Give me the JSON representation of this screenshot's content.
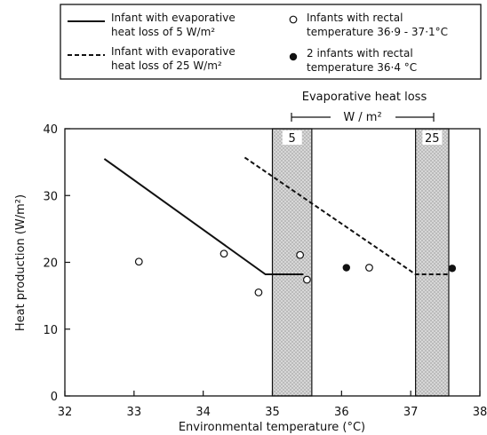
{
  "chart_data": {
    "type": "scatter",
    "xlabel": "Environmental temperature (°C)",
    "ylabel": "Heat production (W/m²)",
    "xlim": [
      32,
      38
    ],
    "ylim": [
      0,
      40
    ],
    "x_ticks": [
      "32",
      "33",
      "34",
      "35",
      "36",
      "37",
      "38"
    ],
    "y_ticks": [
      "0",
      "10",
      "20",
      "30",
      "40"
    ],
    "legend": {
      "placement": "top",
      "entries": [
        {
          "key": "solid",
          "line1": "Infant with evaporative",
          "line2": "heat loss of  5 W/m²"
        },
        {
          "key": "dashed",
          "line1": "Infant with evaporative",
          "line2": "heat loss of  25 W/m²"
        },
        {
          "key": "open",
          "line1": "Infants with rectal",
          "line2": "temperature  36·9 - 37·1°C"
        },
        {
          "key": "filled",
          "line1": "2 infants with rectal",
          "line2": "temperature  36·4 °C"
        }
      ]
    },
    "annotation": {
      "title": "Evaporative heat loss",
      "unit": "W / m²",
      "band_labels": [
        "5",
        "25"
      ]
    },
    "bands": [
      {
        "label": "5",
        "x": [
          35.0,
          35.57
        ]
      },
      {
        "label": "25",
        "x": [
          37.07,
          37.55
        ]
      }
    ],
    "series": [
      {
        "style": "solid",
        "points": [
          [
            32.57,
            35.5
          ],
          [
            34.9,
            18.2
          ],
          [
            35.45,
            18.2
          ]
        ]
      },
      {
        "style": "dashed",
        "points": [
          [
            34.6,
            35.7
          ],
          [
            37.07,
            18.2
          ],
          [
            37.55,
            18.2
          ]
        ]
      }
    ],
    "open_points": [
      [
        33.07,
        20.1
      ],
      [
        34.3,
        21.3
      ],
      [
        34.8,
        15.5
      ],
      [
        35.4,
        21.1
      ],
      [
        35.5,
        17.4
      ],
      [
        36.4,
        19.2
      ]
    ],
    "filled_points": [
      [
        36.07,
        19.2
      ],
      [
        37.6,
        19.1
      ]
    ]
  }
}
